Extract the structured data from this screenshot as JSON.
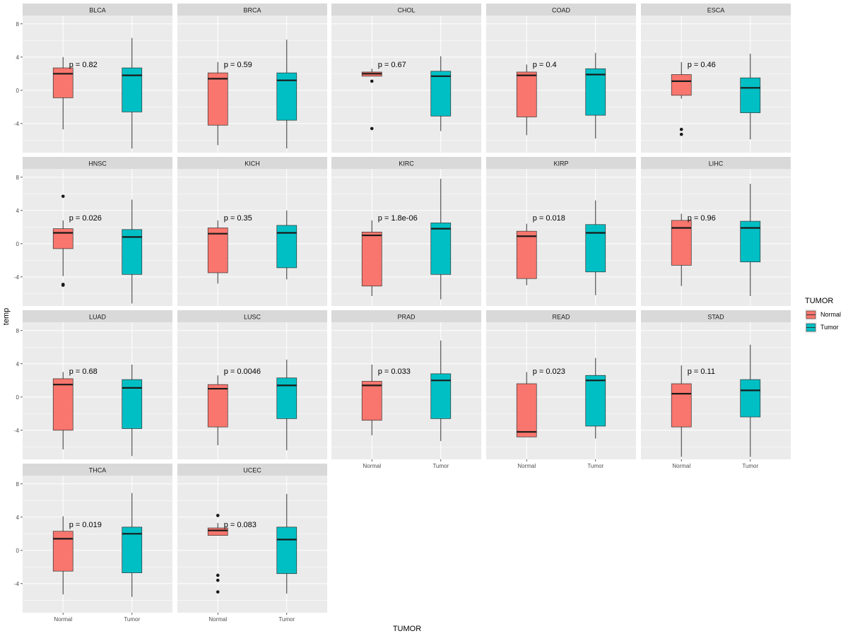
{
  "chart_data": {
    "type": "boxplot",
    "facet_layout": "wrap",
    "ylabel": "temp",
    "xlabel": "TUMOR",
    "ylim": [
      -7.5,
      9
    ],
    "y_ticks": [
      8,
      4,
      0,
      -4
    ],
    "y_tick_labels": [
      "8",
      "4",
      "0",
      "-4"
    ],
    "categories": [
      "Normal",
      "Tumor"
    ],
    "legend": {
      "title": "TUMOR",
      "placement": "right",
      "items": [
        {
          "label": "Normal",
          "color": "#F8766D"
        },
        {
          "label": "Tumor",
          "color": "#00BFC4"
        }
      ]
    },
    "colors": {
      "panel_bg": "#EBEBEB",
      "strip_bg": "#D9D9D9",
      "grid": "#FFFFFF",
      "normal": "#F8766D",
      "tumor": "#00BFC4"
    },
    "facets": [
      {
        "name": "BLCA",
        "p": "p = 0.82",
        "Normal": {
          "min": -4.7,
          "q1": -0.9,
          "median": 2.0,
          "q3": 2.7,
          "max": 4.0,
          "outliers": []
        },
        "Tumor": {
          "min": -7.0,
          "q1": -2.6,
          "median": 1.8,
          "q3": 2.7,
          "max": 6.3,
          "outliers": []
        }
      },
      {
        "name": "BRCA",
        "p": "p = 0.59",
        "Normal": {
          "min": -6.6,
          "q1": -4.2,
          "median": 1.4,
          "q3": 2.1,
          "max": 3.4,
          "outliers": []
        },
        "Tumor": {
          "min": -7.0,
          "q1": -3.6,
          "median": 1.2,
          "q3": 2.1,
          "max": 6.1,
          "outliers": []
        }
      },
      {
        "name": "CHOL",
        "p": "p = 0.67",
        "Normal": {
          "min": 1.7,
          "q1": 1.7,
          "median": 2.0,
          "q3": 2.2,
          "max": 2.6,
          "outliers": [
            1.1,
            -4.6
          ]
        },
        "Tumor": {
          "min": -4.9,
          "q1": -3.1,
          "median": 1.7,
          "q3": 2.3,
          "max": 4.1,
          "outliers": []
        }
      },
      {
        "name": "COAD",
        "p": "p = 0.4",
        "Normal": {
          "min": -5.4,
          "q1": -3.2,
          "median": 1.8,
          "q3": 2.2,
          "max": 3.1,
          "outliers": []
        },
        "Tumor": {
          "min": -5.8,
          "q1": -3.0,
          "median": 1.9,
          "q3": 2.6,
          "max": 4.5,
          "outliers": []
        }
      },
      {
        "name": "ESCA",
        "p": "p = 0.46",
        "Normal": {
          "min": -1.0,
          "q1": -0.6,
          "median": 1.1,
          "q3": 1.9,
          "max": 3.4,
          "outliers": [
            -4.7,
            -5.3
          ]
        },
        "Tumor": {
          "min": -5.9,
          "q1": -2.7,
          "median": 0.3,
          "q3": 1.5,
          "max": 4.4,
          "outliers": []
        }
      },
      {
        "name": "HNSC",
        "p": "p = 0.026",
        "Normal": {
          "min": -3.9,
          "q1": -0.6,
          "median": 1.3,
          "q3": 1.8,
          "max": 2.8,
          "outliers": [
            5.7,
            -4.9,
            -5.0
          ]
        },
        "Tumor": {
          "min": -7.2,
          "q1": -3.7,
          "median": 0.8,
          "q3": 1.7,
          "max": 5.3,
          "outliers": []
        }
      },
      {
        "name": "KICH",
        "p": "p = 0.35",
        "Normal": {
          "min": -4.8,
          "q1": -3.5,
          "median": 1.2,
          "q3": 1.9,
          "max": 2.8,
          "outliers": []
        },
        "Tumor": {
          "min": -4.3,
          "q1": -2.9,
          "median": 1.3,
          "q3": 2.2,
          "max": 4.0,
          "outliers": []
        }
      },
      {
        "name": "KIRC",
        "p": "p = 1.8e-06",
        "Normal": {
          "min": -6.3,
          "q1": -5.1,
          "median": 1.0,
          "q3": 1.4,
          "max": 2.8,
          "outliers": []
        },
        "Tumor": {
          "min": -6.7,
          "q1": -3.7,
          "median": 1.8,
          "q3": 2.5,
          "max": 7.8,
          "outliers": []
        }
      },
      {
        "name": "KIRP",
        "p": "p = 0.018",
        "Normal": {
          "min": -5.0,
          "q1": -4.2,
          "median": 0.9,
          "q3": 1.5,
          "max": 2.4,
          "outliers": []
        },
        "Tumor": {
          "min": -6.2,
          "q1": -3.4,
          "median": 1.3,
          "q3": 2.3,
          "max": 5.2,
          "outliers": []
        }
      },
      {
        "name": "LIHC",
        "p": "p = 0.96",
        "Normal": {
          "min": -5.1,
          "q1": -2.6,
          "median": 1.9,
          "q3": 2.8,
          "max": 3.6,
          "outliers": []
        },
        "Tumor": {
          "min": -6.3,
          "q1": -2.2,
          "median": 1.9,
          "q3": 2.7,
          "max": 7.2,
          "outliers": []
        }
      },
      {
        "name": "LUAD",
        "p": "p = 0.68",
        "Normal": {
          "min": -6.3,
          "q1": -4.0,
          "median": 1.5,
          "q3": 2.2,
          "max": 3.0,
          "outliers": []
        },
        "Tumor": {
          "min": -7.1,
          "q1": -3.8,
          "median": 1.1,
          "q3": 2.1,
          "max": 3.9,
          "outliers": []
        }
      },
      {
        "name": "LUSC",
        "p": "p = 0.0046",
        "Normal": {
          "min": -5.8,
          "q1": -3.6,
          "median": 1.0,
          "q3": 1.5,
          "max": 2.6,
          "outliers": []
        },
        "Tumor": {
          "min": -6.4,
          "q1": -2.6,
          "median": 1.4,
          "q3": 2.3,
          "max": 4.5,
          "outliers": []
        }
      },
      {
        "name": "PRAD",
        "p": "p = 0.033",
        "Normal": {
          "min": -4.6,
          "q1": -2.8,
          "median": 1.4,
          "q3": 1.9,
          "max": 3.9,
          "outliers": []
        },
        "Tumor": {
          "min": -5.3,
          "q1": -2.6,
          "median": 2.0,
          "q3": 2.8,
          "max": 6.8,
          "outliers": []
        }
      },
      {
        "name": "READ",
        "p": "p = 0.023",
        "Normal": {
          "min": -4.8,
          "q1": -4.8,
          "median": -4.2,
          "q3": 1.6,
          "max": 3.0,
          "outliers": []
        },
        "Tumor": {
          "min": -5.0,
          "q1": -3.5,
          "median": 2.0,
          "q3": 2.6,
          "max": 4.7,
          "outliers": []
        }
      },
      {
        "name": "STAD",
        "p": "p = 0.11",
        "Normal": {
          "min": -7.2,
          "q1": -3.6,
          "median": 0.4,
          "q3": 1.6,
          "max": 3.8,
          "outliers": []
        },
        "Tumor": {
          "min": -7.2,
          "q1": -2.4,
          "median": 0.8,
          "q3": 2.1,
          "max": 6.3,
          "outliers": []
        }
      },
      {
        "name": "THCA",
        "p": "p = 0.019",
        "Normal": {
          "min": -5.3,
          "q1": -2.5,
          "median": 1.4,
          "q3": 2.3,
          "max": 4.1,
          "outliers": []
        },
        "Tumor": {
          "min": -5.6,
          "q1": -2.7,
          "median": 2.0,
          "q3": 2.8,
          "max": 6.9,
          "outliers": []
        }
      },
      {
        "name": "UCEC",
        "p": "p = 0.083",
        "Normal": {
          "min": 1.8,
          "q1": 1.8,
          "median": 2.4,
          "q3": 2.7,
          "max": 3.3,
          "outliers": [
            4.2,
            -3.0,
            -3.6,
            -5.0
          ]
        },
        "Tumor": {
          "min": -5.2,
          "q1": -2.8,
          "median": 1.3,
          "q3": 2.8,
          "max": 6.8,
          "outliers": []
        }
      }
    ]
  }
}
